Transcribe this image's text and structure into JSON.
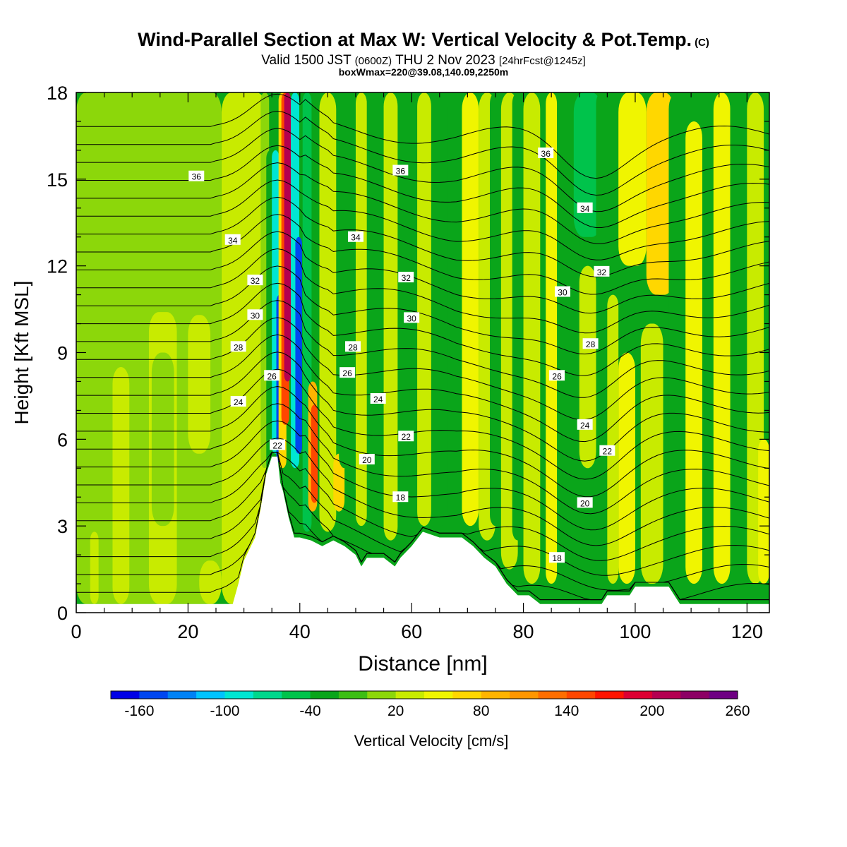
{
  "header": {
    "title": "Wind-Parallel Section at Max W: Vertical Velocity & Pot.Temp.",
    "title_mark": "(C)",
    "valid_prefix": "Valid 1500 JST",
    "valid_utc": "(0600Z)",
    "valid_date": "THU 2 Nov 2023",
    "forecast": "[24hrFcst@1245z]",
    "box_info": "boxWmax=220@39.08,140.09,2250m"
  },
  "colors": {
    "background": "#0aa51a",
    "terrain": "#ffffff",
    "contour": "#000000",
    "palette": [
      "#0000e6",
      "#0046f0",
      "#0082f5",
      "#00c3ff",
      "#00e6d2",
      "#00d78c",
      "#00c34b",
      "#0aa51a",
      "#3cbe14",
      "#8cd70a",
      "#c8eb00",
      "#f0f500",
      "#ffd700",
      "#ffb400",
      "#ff9600",
      "#ff6e00",
      "#ff4600",
      "#ff1400",
      "#dc0032",
      "#b40050",
      "#8c0064",
      "#6e0082"
    ]
  },
  "chart_data": {
    "type": "heatmap",
    "title": "Wind-Parallel Section at Max W: Vertical Velocity & Pot.Temp.",
    "xlabel": "Distance [nm]",
    "ylabel": "Height [Kft MSL]",
    "xlim": [
      0,
      124
    ],
    "ylim": [
      0,
      18
    ],
    "x_ticks": [
      0,
      20,
      40,
      60,
      80,
      100,
      120
    ],
    "y_ticks": [
      0,
      3,
      6,
      9,
      12,
      15,
      18
    ],
    "colorbar": {
      "label": "Vertical Velocity [cm/s]",
      "levels_min": -180,
      "levels_step": 20,
      "levels_count": 22,
      "tick_labels": [
        -160,
        -100,
        -40,
        20,
        80,
        140,
        200,
        260
      ]
    },
    "columns": [
      {
        "x": 0,
        "w": 26,
        "y0": 0.3,
        "y1": 18,
        "v": 0
      },
      {
        "x": 2.5,
        "w": 1.5,
        "y0": 0.3,
        "y1": 2.8,
        "v": 20
      },
      {
        "x": 6.5,
        "w": 3,
        "y0": 0.3,
        "y1": 8.5,
        "v": 20
      },
      {
        "x": 13,
        "w": 5,
        "y0": 0.3,
        "y1": 10.4,
        "v": 20
      },
      {
        "x": 13.5,
        "w": 4,
        "y0": 3,
        "y1": 9,
        "v": 0
      },
      {
        "x": 20,
        "w": 4,
        "y0": 5.5,
        "y1": 10.3,
        "v": 20
      },
      {
        "x": 22,
        "w": 4,
        "y0": 0.3,
        "y1": 1.8,
        "v": 20
      },
      {
        "x": 26,
        "w": 8,
        "y0": 0.3,
        "y1": 18,
        "v": 20
      },
      {
        "x": 33,
        "w": 1.5,
        "y0": 5,
        "y1": 18,
        "v": 0
      },
      {
        "x": 34,
        "w": 1.5,
        "y0": 4.8,
        "y1": 16,
        "v": -40
      },
      {
        "x": 35,
        "w": 1.3,
        "y0": 5.5,
        "y1": 16,
        "v": -100
      },
      {
        "x": 35.8,
        "w": 1.2,
        "y0": 5.2,
        "y1": 11,
        "v": -160
      },
      {
        "x": 36.2,
        "w": 1.4,
        "y0": 5,
        "y1": 18,
        "v": 60
      },
      {
        "x": 36.7,
        "w": 1.4,
        "y0": 6.5,
        "y1": 18,
        "v": 140
      },
      {
        "x": 37.2,
        "w": 1.2,
        "y0": 8,
        "y1": 18,
        "v": 200
      },
      {
        "x": 38.4,
        "w": 1.5,
        "y0": 5,
        "y1": 18,
        "v": -100
      },
      {
        "x": 39.2,
        "w": 1.2,
        "y0": 5.5,
        "y1": 13,
        "v": -160
      },
      {
        "x": 40.5,
        "w": 1.6,
        "y0": 2.8,
        "y1": 18,
        "v": -60
      },
      {
        "x": 41.5,
        "w": 1.6,
        "y0": 3.5,
        "y1": 8,
        "v": 80
      },
      {
        "x": 42,
        "w": 1.2,
        "y0": 3.8,
        "y1": 7.2,
        "v": 140
      },
      {
        "x": 43.5,
        "w": 3,
        "y0": 2.8,
        "y1": 18,
        "v": 20
      },
      {
        "x": 46,
        "w": 2,
        "y0": 3.5,
        "y1": 5.5,
        "v": 60
      },
      {
        "x": 47,
        "w": 2,
        "y0": 5,
        "y1": 18,
        "v": -40
      },
      {
        "x": 50,
        "w": 2,
        "y0": 3,
        "y1": 18,
        "v": 20
      },
      {
        "x": 52,
        "w": 2,
        "y0": 2.5,
        "y1": 18,
        "v": -40
      },
      {
        "x": 55,
        "w": 2.5,
        "y0": 2.5,
        "y1": 18,
        "v": 20
      },
      {
        "x": 58,
        "w": 2,
        "y0": 2.5,
        "y1": 18,
        "v": -40
      },
      {
        "x": 61,
        "w": 2.5,
        "y0": 3,
        "y1": 18,
        "v": 20
      },
      {
        "x": 64,
        "w": 2.5,
        "y0": 3,
        "y1": 18,
        "v": -40
      },
      {
        "x": 69,
        "w": 3,
        "y0": 3,
        "y1": 18,
        "v": 40
      },
      {
        "x": 72,
        "w": 3,
        "y0": 2.5,
        "y1": 18,
        "v": 20
      },
      {
        "x": 74,
        "w": 2,
        "y0": 3,
        "y1": 18,
        "v": -40
      },
      {
        "x": 76,
        "w": 3,
        "y0": 1.5,
        "y1": 18,
        "v": 20
      },
      {
        "x": 78,
        "w": 2,
        "y0": 2.5,
        "y1": 18,
        "v": -40
      },
      {
        "x": 80,
        "w": 3,
        "y0": 1,
        "y1": 18,
        "v": 20
      },
      {
        "x": 84,
        "w": 2,
        "y0": 1,
        "y1": 18,
        "v": 40
      },
      {
        "x": 86,
        "w": 4,
        "y0": 12,
        "y1": 18,
        "v": -40
      },
      {
        "x": 89,
        "w": 5,
        "y0": 13,
        "y1": 18,
        "v": -60
      },
      {
        "x": 90,
        "w": 3,
        "y0": 5,
        "y1": 12,
        "v": 20
      },
      {
        "x": 93,
        "w": 2,
        "y0": 1,
        "y1": 18,
        "v": -40
      },
      {
        "x": 95,
        "w": 2,
        "y0": 1,
        "y1": 11,
        "v": 20
      },
      {
        "x": 97,
        "w": 5,
        "y0": 12,
        "y1": 18,
        "v": 40
      },
      {
        "x": 97,
        "w": 3,
        "y0": 1,
        "y1": 9,
        "v": 40
      },
      {
        "x": 102,
        "w": 5,
        "y0": 11,
        "y1": 18,
        "v": 60
      },
      {
        "x": 101,
        "w": 4,
        "y0": 1,
        "y1": 10,
        "v": 20
      },
      {
        "x": 106,
        "w": 3,
        "y0": 1,
        "y1": 18,
        "v": -40
      },
      {
        "x": 109,
        "w": 3,
        "y0": 1,
        "y1": 17,
        "v": 40
      },
      {
        "x": 112,
        "w": 2,
        "y0": 1,
        "y1": 10,
        "v": -40
      },
      {
        "x": 114,
        "w": 3,
        "y0": 1,
        "y1": 18,
        "v": 40
      },
      {
        "x": 117,
        "w": 3,
        "y0": 10,
        "y1": 18,
        "v": -40
      },
      {
        "x": 120,
        "w": 3,
        "y0": 1,
        "y1": 18,
        "v": 20
      },
      {
        "x": 122,
        "w": 2,
        "y0": 1,
        "y1": 6,
        "v": 40
      }
    ],
    "terrain": [
      [
        0,
        0.3
      ],
      [
        28,
        0.3
      ],
      [
        29,
        1
      ],
      [
        30,
        1.8
      ],
      [
        31,
        2.2
      ],
      [
        32,
        2.6
      ],
      [
        33,
        3.6
      ],
      [
        34,
        4.8
      ],
      [
        35,
        5.4
      ],
      [
        36,
        5.4
      ],
      [
        36.5,
        4.5
      ],
      [
        37,
        4.2
      ],
      [
        38,
        3.3
      ],
      [
        39,
        2.6
      ],
      [
        40,
        2.6
      ],
      [
        42,
        2.5
      ],
      [
        44,
        2.3
      ],
      [
        46,
        2.5
      ],
      [
        48,
        2.3
      ],
      [
        50,
        2
      ],
      [
        51,
        1.6
      ],
      [
        52,
        1.9
      ],
      [
        55,
        1.9
      ],
      [
        57,
        1.6
      ],
      [
        58,
        1.9
      ],
      [
        60,
        2.3
      ],
      [
        62,
        2.8
      ],
      [
        65,
        2.6
      ],
      [
        69,
        2.6
      ],
      [
        71,
        2.3
      ],
      [
        73,
        1.9
      ],
      [
        75,
        1.6
      ],
      [
        77,
        1
      ],
      [
        79,
        0.6
      ],
      [
        81,
        0.6
      ],
      [
        83,
        0.3
      ],
      [
        94,
        0.3
      ],
      [
        95,
        0.6
      ],
      [
        99,
        0.6
      ],
      [
        100,
        0.9
      ],
      [
        106,
        0.9
      ],
      [
        108,
        0.3
      ],
      [
        124,
        0.3
      ]
    ],
    "theta_levels": [
      12,
      13,
      14,
      15,
      16,
      17,
      18,
      19,
      20,
      21,
      22,
      23,
      24,
      25,
      26,
      27,
      28,
      29,
      30,
      31,
      32,
      33,
      34,
      35,
      36,
      37,
      38
    ],
    "theta_west_height": 0.7,
    "theta_west_spacing": 0.62,
    "theta_labels": [
      {
        "text": "36",
        "x": 21.5,
        "y": 15.1
      },
      {
        "text": "34",
        "x": 28,
        "y": 12.9
      },
      {
        "text": "32",
        "x": 32,
        "y": 11.5
      },
      {
        "text": "30",
        "x": 32,
        "y": 10.3
      },
      {
        "text": "28",
        "x": 29,
        "y": 9.2
      },
      {
        "text": "26",
        "x": 35,
        "y": 8.2
      },
      {
        "text": "24",
        "x": 29,
        "y": 7.3
      },
      {
        "text": "22",
        "x": 36,
        "y": 5.8
      },
      {
        "text": "36",
        "x": 58,
        "y": 15.3
      },
      {
        "text": "34",
        "x": 50,
        "y": 13
      },
      {
        "text": "32",
        "x": 59,
        "y": 11.6
      },
      {
        "text": "30",
        "x": 60,
        "y": 10.2
      },
      {
        "text": "28",
        "x": 49.5,
        "y": 9.2
      },
      {
        "text": "26",
        "x": 48.5,
        "y": 8.3
      },
      {
        "text": "24",
        "x": 54,
        "y": 7.4
      },
      {
        "text": "22",
        "x": 59,
        "y": 6.1
      },
      {
        "text": "20",
        "x": 52,
        "y": 5.3
      },
      {
        "text": "18",
        "x": 58,
        "y": 4.0
      },
      {
        "text": "36",
        "x": 84,
        "y": 15.9
      },
      {
        "text": "34",
        "x": 91,
        "y": 14
      },
      {
        "text": "32",
        "x": 94,
        "y": 11.8
      },
      {
        "text": "30",
        "x": 87,
        "y": 11.1
      },
      {
        "text": "28",
        "x": 92,
        "y": 9.3
      },
      {
        "text": "26",
        "x": 86,
        "y": 8.2
      },
      {
        "text": "24",
        "x": 91,
        "y": 6.5
      },
      {
        "text": "22",
        "x": 95,
        "y": 5.6
      },
      {
        "text": "20",
        "x": 91,
        "y": 3.8
      },
      {
        "text": "18",
        "x": 86,
        "y": 1.9
      }
    ]
  }
}
